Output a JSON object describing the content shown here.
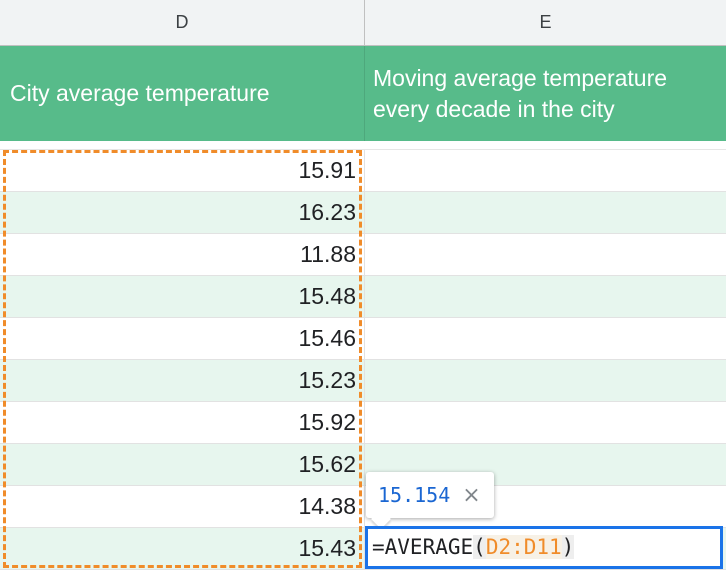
{
  "columns": {
    "d": "D",
    "e": "E"
  },
  "headers": {
    "d": "City average temperature",
    "e_line1": "Moving average temperature",
    "e_line2": "every decade in the city"
  },
  "rows": [
    {
      "d": "15.91"
    },
    {
      "d": "16.23"
    },
    {
      "d": "11.88"
    },
    {
      "d": "15.48"
    },
    {
      "d": "15.46"
    },
    {
      "d": "15.23"
    },
    {
      "d": "15.92"
    },
    {
      "d": "15.62"
    },
    {
      "d": "14.38"
    },
    {
      "d": "15.43"
    }
  ],
  "tooltip": {
    "value": "15.154",
    "close": "×"
  },
  "formula": {
    "prefix": "=AVERAGE",
    "open": "(",
    "range": "D2:D11",
    "close": ")"
  },
  "colors": {
    "header_green": "#57bb8a",
    "alt_row": "#e7f6ee",
    "range_orange": "#f08c2a",
    "selection_blue": "#1a73e8"
  }
}
